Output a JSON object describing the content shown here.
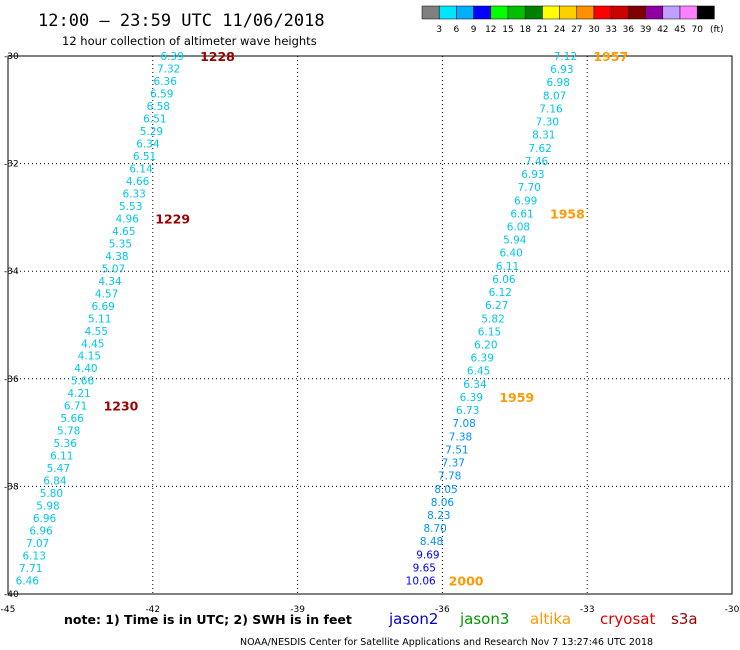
{
  "header": {
    "title": "12:00 — 23:59 UTC 11/06/2018",
    "subtitle": "12 hour collection of altimeter wave heights"
  },
  "colorbar": {
    "unit": "(ft)",
    "steps": [
      {
        "color": "#808080",
        "label": "3"
      },
      {
        "color": "#00e5ff",
        "label": "6"
      },
      {
        "color": "#00b0ff",
        "label": "9"
      },
      {
        "color": "#0000ff",
        "label": "12"
      },
      {
        "color": "#00ff00",
        "label": "15"
      },
      {
        "color": "#00c000",
        "label": "18"
      },
      {
        "color": "#008000",
        "label": "21"
      },
      {
        "color": "#ffff00",
        "label": "24"
      },
      {
        "color": "#ffd000",
        "label": "27"
      },
      {
        "color": "#ff9000",
        "label": "30"
      },
      {
        "color": "#ff0000",
        "label": "33"
      },
      {
        "color": "#cc0000",
        "label": "36"
      },
      {
        "color": "#800000",
        "label": "39"
      },
      {
        "color": "#9000a0",
        "label": "42"
      },
      {
        "color": "#c0a0ff",
        "label": "45"
      },
      {
        "color": "#ff80ff",
        "label": "70"
      },
      {
        "color": "#000000",
        "label": ""
      }
    ]
  },
  "note": "note:  1) Time is in UTC;  2) SWH is in feet",
  "satellites": [
    {
      "name": "jason2",
      "color": "#0000cc"
    },
    {
      "name": "jason3",
      "color": "#009900"
    },
    {
      "name": "altika",
      "color": "#ff9900"
    },
    {
      "name": "cryosat",
      "color": "#dd0000"
    },
    {
      "name": "s3a",
      "color": "#990000"
    }
  ],
  "credit": "NOAA/NESDIS Center for Satellite Applications and Research    Nov  7 13:27:46 UTC 2018",
  "chart_data": {
    "type": "scatter",
    "xlabel": "",
    "ylabel": "",
    "xlim": [
      -45,
      -30
    ],
    "ylim": [
      -40,
      -30
    ],
    "x_ticks": [
      "-45",
      "-42",
      "-39",
      "-36",
      "-33",
      "-30"
    ],
    "y_ticks": [
      "-30",
      "-32",
      "-34",
      "-36",
      "-38",
      "-40"
    ],
    "tracks": [
      {
        "satellite": "s3a",
        "time_color": "#990000",
        "lon_start": -41.6,
        "lat_start": -30.0,
        "lon_end": -44.6,
        "lat_end": -39.75,
        "values": [
          6.39,
          7.32,
          6.36,
          6.59,
          6.58,
          6.51,
          5.29,
          6.34,
          6.51,
          6.14,
          4.66,
          6.33,
          5.53,
          4.96,
          4.65,
          5.35,
          4.38,
          5.07,
          4.34,
          4.57,
          6.69,
          5.11,
          4.55,
          4.45,
          4.15,
          4.4,
          5.66,
          4.21,
          6.71,
          5.66,
          5.78,
          5.36,
          6.11,
          5.47,
          6.84,
          5.8,
          5.98,
          6.96,
          6.96,
          7.07,
          6.13,
          7.71,
          6.46
        ],
        "value_colors": [
          "#00c8e6",
          "#00c8e6",
          "#00c8e6",
          "#00c8e6",
          "#00c8e6",
          "#00c8e6",
          "#00c8e6",
          "#00c8e6",
          "#00c8e6",
          "#00c8e6",
          "#00c8e6",
          "#00c8e6",
          "#00c8e6",
          "#00c8e6",
          "#00c8e6",
          "#00c8e6",
          "#00c8e6",
          "#00c8e6",
          "#00c8e6",
          "#00c8e6",
          "#00c8e6",
          "#00c8e6",
          "#00c8e6",
          "#00c8e6",
          "#00c8e6",
          "#00c8e6",
          "#00c8e6",
          "#00c8e6",
          "#00c8e6",
          "#00c8e6",
          "#00c8e6",
          "#00c8e6",
          "#00c8e6",
          "#00c8e6",
          "#00c8e6",
          "#00c8e6",
          "#00c8e6",
          "#00c8e6",
          "#00c8e6",
          "#00c8e6",
          "#00c8e6",
          "#00c8e6",
          "#00c8e6"
        ],
        "times": [
          {
            "label": "1228",
            "index": 0
          },
          {
            "label": "1229",
            "index": 13
          },
          {
            "label": "1230",
            "index": 28
          }
        ]
      },
      {
        "satellite": "altika",
        "time_color": "#ff9900",
        "lon_start": -33.45,
        "lat_start": -30.0,
        "lon_end": -36.45,
        "lat_end": -39.75,
        "values": [
          7.12,
          6.93,
          6.98,
          8.07,
          7.16,
          7.3,
          8.31,
          7.62,
          7.46,
          6.93,
          7.7,
          6.99,
          6.61,
          6.08,
          5.94,
          6.4,
          6.11,
          6.06,
          6.12,
          6.27,
          5.82,
          6.15,
          6.2,
          6.39,
          6.45,
          6.34,
          6.39,
          6.73,
          7.08,
          7.38,
          7.51,
          7.37,
          7.78,
          8.05,
          8.06,
          8.23,
          8.7,
          8.48,
          9.69,
          9.65,
          10.06
        ],
        "value_colors": [
          "#00c8e6",
          "#00c8e6",
          "#00c8e6",
          "#00c8e6",
          "#00c8e6",
          "#00c8e6",
          "#00c8e6",
          "#00c8e6",
          "#00c8e6",
          "#00c8e6",
          "#00c8e6",
          "#00c8e6",
          "#00c8e6",
          "#00c8e6",
          "#00c8e6",
          "#00c8e6",
          "#00c8e6",
          "#00c8e6",
          "#00c8e6",
          "#00c8e6",
          "#00c8e6",
          "#00c8e6",
          "#00c8e6",
          "#00c8e6",
          "#00c8e6",
          "#00c8e6",
          "#00c8e6",
          "#00c8e6",
          "#0090ff",
          "#0090ff",
          "#0090ff",
          "#0090ff",
          "#0090ff",
          "#0090ff",
          "#0090ff",
          "#0090ff",
          "#0090ff",
          "#0090ff",
          "#0000ff",
          "#0000ff",
          "#0000ff"
        ],
        "times": [
          {
            "label": "1957",
            "index": 0
          },
          {
            "label": "1958",
            "index": 12
          },
          {
            "label": "1959",
            "index": 26
          },
          {
            "label": "2000",
            "index": 40
          }
        ]
      }
    ]
  }
}
